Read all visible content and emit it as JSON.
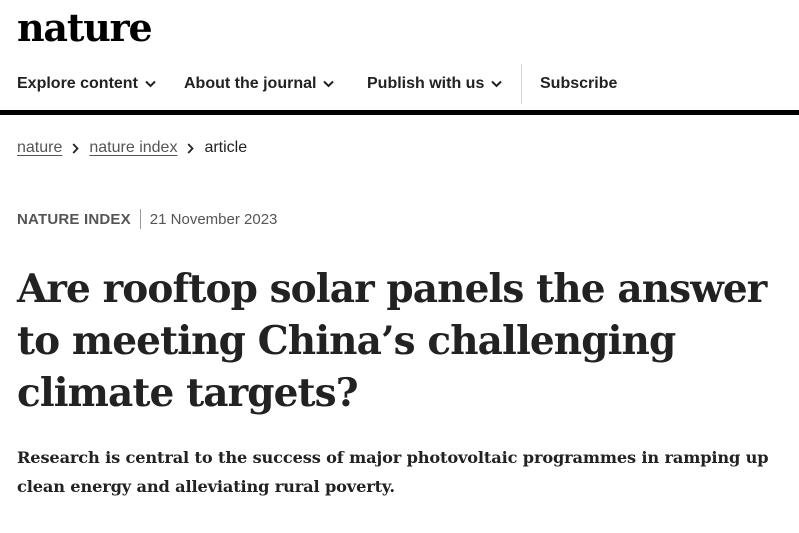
{
  "header": {
    "logo": "nature"
  },
  "nav": {
    "explore": "Explore content",
    "about": "About the journal",
    "publish": "Publish with us",
    "subscribe": "Subscribe"
  },
  "breadcrumb": {
    "items": [
      "nature",
      "nature index"
    ],
    "current": "article"
  },
  "article": {
    "type": "NATURE INDEX",
    "date": "21 November 2023",
    "title": "Are rooftop solar panels the answer to meeting China’s challenging climate targets?",
    "standfirst": "Research is central to the success of major photovoltaic programmes in ramping up clean energy and alleviating rural poverty."
  },
  "colors": {
    "text": "#222222",
    "muted": "#555555",
    "rule": "#000000"
  },
  "icons": {
    "nav_dropdown": "chevron-down-icon",
    "breadcrumb_separator": "chevron-right-icon"
  }
}
